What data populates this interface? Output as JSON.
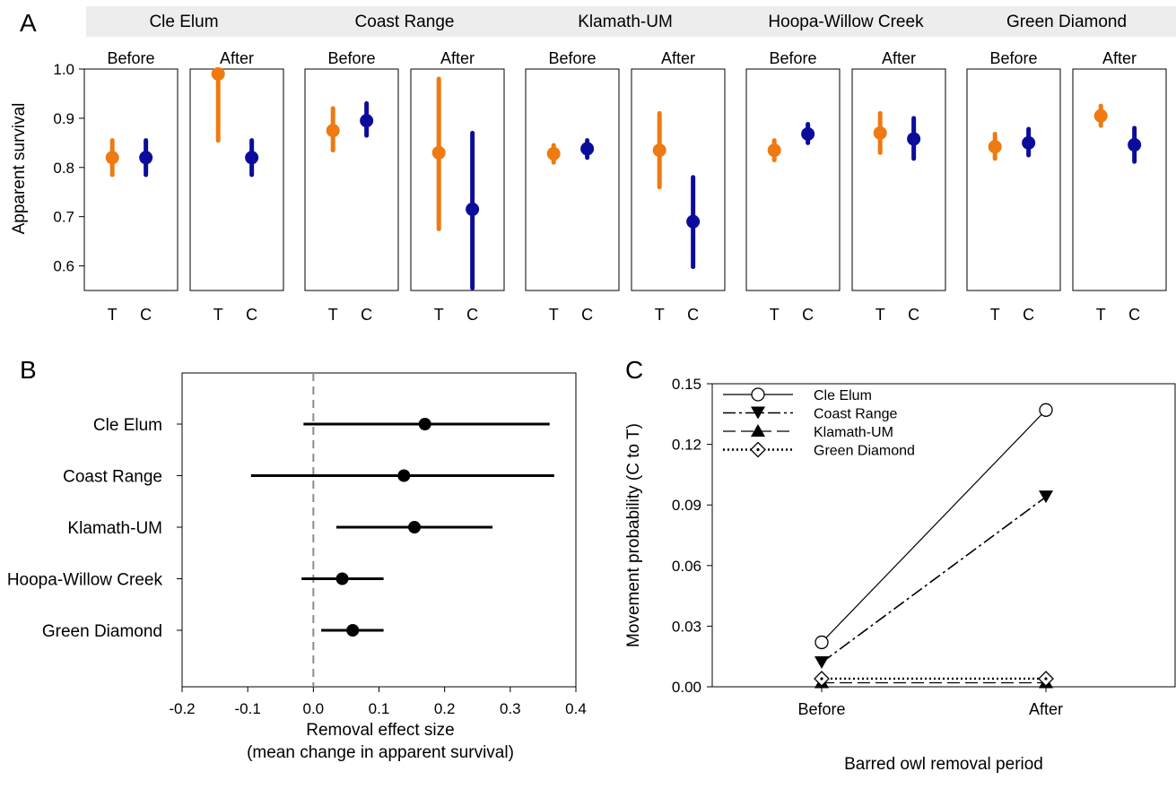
{
  "colors": {
    "treatment": "#EE7A11",
    "control": "#0C0C9C",
    "strip_background": "#EDEDED",
    "zero_line": "#8C8C8C",
    "forest_marks": "#000000"
  },
  "panel_letters": [
    "A",
    "B",
    "C"
  ],
  "chart_data": [
    {
      "panel": "A",
      "type": "scatter",
      "ylabel": "Apparent survival",
      "ylim": [
        0.55,
        1.0
      ],
      "yticks": [
        0.6,
        0.7,
        0.8,
        0.9,
        1.0
      ],
      "ytick_labels": [
        "0.6",
        "0.7",
        "0.8",
        "0.9",
        "1.0"
      ],
      "group_labels": [
        "T",
        "C"
      ],
      "sites": [
        {
          "name": "Cle Elum",
          "periods": [
            {
              "label": "Before",
              "T": {
                "est": 0.82,
                "lo": 0.785,
                "hi": 0.855
              },
              "C": {
                "est": 0.82,
                "lo": 0.785,
                "hi": 0.855
              }
            },
            {
              "label": "After",
              "T": {
                "est": 0.99,
                "lo": 0.855,
                "hi": 0.995
              },
              "C": {
                "est": 0.82,
                "lo": 0.785,
                "hi": 0.855
              }
            }
          ]
        },
        {
          "name": "Coast Range",
          "periods": [
            {
              "label": "Before",
              "T": {
                "est": 0.875,
                "lo": 0.835,
                "hi": 0.92
              },
              "C": {
                "est": 0.895,
                "lo": 0.865,
                "hi": 0.93
              }
            },
            {
              "label": "After",
              "T": {
                "est": 0.83,
                "lo": 0.675,
                "hi": 0.98
              },
              "C": {
                "est": 0.715,
                "lo": 0.555,
                "hi": 0.87
              }
            }
          ]
        },
        {
          "name": "Klamath-UM",
          "periods": [
            {
              "label": "Before",
              "T": {
                "est": 0.828,
                "lo": 0.81,
                "hi": 0.845
              },
              "C": {
                "est": 0.838,
                "lo": 0.82,
                "hi": 0.855
              }
            },
            {
              "label": "After",
              "T": {
                "est": 0.835,
                "lo": 0.76,
                "hi": 0.91
              },
              "C": {
                "est": 0.69,
                "lo": 0.598,
                "hi": 0.78
              }
            }
          ]
        },
        {
          "name": "Hoopa-Willow Creek",
          "periods": [
            {
              "label": "Before",
              "T": {
                "est": 0.835,
                "lo": 0.815,
                "hi": 0.855
              },
              "C": {
                "est": 0.868,
                "lo": 0.85,
                "hi": 0.888
              }
            },
            {
              "label": "After",
              "T": {
                "est": 0.87,
                "lo": 0.83,
                "hi": 0.91
              },
              "C": {
                "est": 0.858,
                "lo": 0.818,
                "hi": 0.9
              }
            }
          ]
        },
        {
          "name": "Green Diamond",
          "periods": [
            {
              "label": "Before",
              "T": {
                "est": 0.842,
                "lo": 0.818,
                "hi": 0.868
              },
              "C": {
                "est": 0.85,
                "lo": 0.825,
                "hi": 0.878
              }
            },
            {
              "label": "After",
              "T": {
                "est": 0.905,
                "lo": 0.885,
                "hi": 0.925
              },
              "C": {
                "est": 0.846,
                "lo": 0.812,
                "hi": 0.88
              }
            }
          ]
        }
      ]
    },
    {
      "panel": "B",
      "type": "scatter",
      "xlabel": "Removal effect size",
      "xlabel_line2": "(mean change in apparent survival)",
      "xlim": [
        -0.2,
        0.4
      ],
      "xticks": [
        -0.2,
        -0.1,
        0.0,
        0.1,
        0.2,
        0.3,
        0.4
      ],
      "xtick_labels": [
        "-0.2",
        "-0.1",
        "0.0",
        "0.1",
        "0.2",
        "0.3",
        "0.4"
      ],
      "categories": [
        "Cle Elum",
        "Coast Range",
        "Klamath-UM",
        "Hoopa-Willow Creek",
        "Green Diamond"
      ],
      "estimates": [
        0.17,
        0.138,
        0.154,
        0.044,
        0.06
      ],
      "lower": [
        -0.015,
        -0.095,
        0.035,
        -0.018,
        0.012
      ],
      "upper": [
        0.36,
        0.367,
        0.273,
        0.107,
        0.107
      ]
    },
    {
      "panel": "C",
      "type": "line",
      "xlabel": "Barred owl removal period",
      "ylabel": "Movement probability (C to T)",
      "categories": [
        "Before",
        "After"
      ],
      "ylim": [
        0,
        0.15
      ],
      "yticks": [
        0.0,
        0.03,
        0.06,
        0.09,
        0.12,
        0.15
      ],
      "ytick_labels": [
        "0.00",
        "0.03",
        "0.06",
        "0.09",
        "0.12",
        "0.15"
      ],
      "legend_position": "top-left",
      "series": [
        {
          "name": "Cle Elum",
          "values": [
            0.022,
            0.137
          ],
          "marker": "circle-open",
          "dash": "solid",
          "width": 1.2
        },
        {
          "name": "Coast Range",
          "values": [
            0.012,
            0.094
          ],
          "marker": "triangle-down",
          "dash": "dashdot",
          "width": 1.6
        },
        {
          "name": "Klamath-UM",
          "values": [
            0.002,
            0.002
          ],
          "marker": "triangle-up",
          "dash": "dashed",
          "width": 1.2
        },
        {
          "name": "Green Diamond",
          "values": [
            0.004,
            0.004
          ],
          "marker": "diamond-dot",
          "dash": "dotted",
          "width": 2.4
        }
      ]
    }
  ]
}
